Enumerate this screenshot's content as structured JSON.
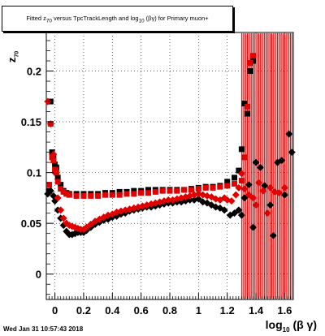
{
  "title_box": {
    "text_before": "Fitted  z",
    "text_sub": "70",
    "text_mid": " versus TpcTrackLength and log",
    "text_sub2": "10",
    "text_after": " (βγ) for Primary muon+"
  },
  "datestamp": "Wed Jan 31 10:57:43 2018",
  "chart_data": {
    "type": "scatter",
    "title": "Fitted z70 versus TpcTrackLength and log10(βγ) for Primary muon+",
    "xlabel": "log10(β γ)",
    "ylabel": "z70",
    "xlim": [
      -0.06,
      1.66
    ],
    "ylim": [
      -0.025,
      0.238
    ],
    "xticks": [
      0,
      0.2,
      0.4,
      0.6,
      0.8,
      1,
      1.2,
      1.4,
      1.6
    ],
    "xtick_labels": [
      "0",
      "0.2",
      "0.4",
      "0.6",
      "0.8",
      "1",
      "1.2",
      "1.4",
      "1.6"
    ],
    "yticks": [
      0,
      0.05,
      0.1,
      0.15,
      0.2
    ],
    "ytick_labels": [
      "0",
      "0.05",
      "0.1",
      "0.15",
      "0.2"
    ],
    "grid": true,
    "series": [
      {
        "marker": "square",
        "color": "#000000",
        "points": [
          [
            -0.04,
            0.082
          ],
          [
            -0.03,
            0.17
          ],
          [
            -0.02,
            0.12
          ],
          [
            -0.01,
            0.115
          ],
          [
            0.0,
            0.108
          ],
          [
            0.01,
            0.105
          ],
          [
            0.02,
            0.095
          ],
          [
            0.04,
            0.088
          ],
          [
            0.06,
            0.082
          ],
          [
            0.08,
            0.08
          ],
          [
            0.1,
            0.079
          ],
          [
            0.15,
            0.079
          ],
          [
            0.2,
            0.079
          ],
          [
            0.25,
            0.079
          ],
          [
            0.3,
            0.079
          ],
          [
            0.35,
            0.08
          ],
          [
            0.4,
            0.08
          ],
          [
            0.45,
            0.081
          ],
          [
            0.5,
            0.081
          ],
          [
            0.55,
            0.082
          ],
          [
            0.6,
            0.082
          ],
          [
            0.65,
            0.083
          ],
          [
            0.7,
            0.083
          ],
          [
            0.75,
            0.083
          ],
          [
            0.8,
            0.083
          ],
          [
            0.85,
            0.083
          ],
          [
            0.9,
            0.083
          ],
          [
            0.95,
            0.084
          ],
          [
            1.0,
            0.085
          ],
          [
            1.05,
            0.086
          ],
          [
            1.1,
            0.086
          ],
          [
            1.15,
            0.087
          ],
          [
            1.2,
            0.091
          ],
          [
            1.25,
            0.095
          ],
          [
            1.28,
            0.102
          ],
          [
            1.3,
            0.123
          ],
          [
            1.32,
            0.168
          ],
          [
            1.34,
            0.158
          ],
          [
            1.36,
            0.2
          ],
          [
            1.38,
            0.21
          ]
        ]
      },
      {
        "marker": "square",
        "color": "#e00000",
        "points": [
          [
            -0.04,
            0.088
          ],
          [
            -0.03,
            0.148
          ],
          [
            -0.02,
            0.115
          ],
          [
            -0.01,
            0.112
          ],
          [
            0.0,
            0.103
          ],
          [
            0.01,
            0.1
          ],
          [
            0.02,
            0.091
          ],
          [
            0.04,
            0.084
          ],
          [
            0.06,
            0.081
          ],
          [
            0.08,
            0.079
          ],
          [
            0.1,
            0.078
          ],
          [
            0.15,
            0.077
          ],
          [
            0.2,
            0.077
          ],
          [
            0.25,
            0.077
          ],
          [
            0.3,
            0.077
          ],
          [
            0.35,
            0.078
          ],
          [
            0.4,
            0.078
          ],
          [
            0.45,
            0.078
          ],
          [
            0.5,
            0.079
          ],
          [
            0.55,
            0.079
          ],
          [
            0.6,
            0.08
          ],
          [
            0.65,
            0.08
          ],
          [
            0.7,
            0.081
          ],
          [
            0.75,
            0.082
          ],
          [
            0.8,
            0.082
          ],
          [
            0.85,
            0.082
          ],
          [
            0.9,
            0.083
          ],
          [
            0.95,
            0.083
          ],
          [
            1.0,
            0.084
          ],
          [
            1.05,
            0.085
          ],
          [
            1.1,
            0.085
          ],
          [
            1.15,
            0.086
          ],
          [
            1.2,
            0.087
          ],
          [
            1.25,
            0.089
          ],
          [
            1.3,
            0.092
          ],
          [
            1.32,
            0.115
          ],
          [
            1.34,
            0.165
          ],
          [
            1.36,
            0.208
          ],
          [
            1.38,
            0.215
          ]
        ]
      },
      {
        "marker": "diamond",
        "color": "#000000",
        "points": [
          [
            -0.05,
            0.079
          ],
          [
            -0.03,
            0.082
          ],
          [
            -0.01,
            0.077
          ],
          [
            0.0,
            0.072
          ],
          [
            0.02,
            0.063
          ],
          [
            0.04,
            0.055
          ],
          [
            0.06,
            0.048
          ],
          [
            0.08,
            0.042
          ],
          [
            0.1,
            0.039
          ],
          [
            0.12,
            0.039
          ],
          [
            0.14,
            0.04
          ],
          [
            0.16,
            0.041
          ],
          [
            0.18,
            0.041
          ],
          [
            0.2,
            0.041
          ],
          [
            0.22,
            0.043
          ],
          [
            0.25,
            0.046
          ],
          [
            0.28,
            0.049
          ],
          [
            0.31,
            0.051
          ],
          [
            0.34,
            0.053
          ],
          [
            0.37,
            0.054
          ],
          [
            0.4,
            0.056
          ],
          [
            0.43,
            0.057
          ],
          [
            0.46,
            0.059
          ],
          [
            0.49,
            0.06
          ],
          [
            0.52,
            0.062
          ],
          [
            0.55,
            0.063
          ],
          [
            0.58,
            0.064
          ],
          [
            0.61,
            0.065
          ],
          [
            0.64,
            0.066
          ],
          [
            0.67,
            0.066
          ],
          [
            0.7,
            0.067
          ],
          [
            0.73,
            0.068
          ],
          [
            0.76,
            0.069
          ],
          [
            0.79,
            0.07
          ],
          [
            0.82,
            0.07
          ],
          [
            0.85,
            0.071
          ],
          [
            0.88,
            0.071
          ],
          [
            0.91,
            0.072
          ],
          [
            0.94,
            0.073
          ],
          [
            0.97,
            0.073
          ],
          [
            1.0,
            0.074
          ],
          [
            1.03,
            0.071
          ],
          [
            1.06,
            0.07
          ],
          [
            1.09,
            0.068
          ],
          [
            1.12,
            0.066
          ],
          [
            1.15,
            0.065
          ],
          [
            1.18,
            0.063
          ],
          [
            1.22,
            0.058
          ],
          [
            1.25,
            0.06
          ],
          [
            1.28,
            0.063
          ],
          [
            1.3,
            0.058
          ],
          [
            1.32,
            0.075
          ],
          [
            1.35,
            0.088
          ],
          [
            1.38,
            0.046
          ],
          [
            1.4,
            0.11
          ],
          [
            1.43,
            0.105
          ],
          [
            1.46,
            0.087
          ],
          [
            1.5,
            0.068
          ],
          [
            1.52,
            0.038
          ],
          [
            1.55,
            0.11
          ],
          [
            1.58,
            0.112
          ],
          [
            1.6,
            0.078
          ],
          [
            1.63,
            0.138
          ],
          [
            1.65,
            0.12
          ]
        ]
      },
      {
        "marker": "diamond",
        "color": "#e00000",
        "points": [
          [
            -0.05,
            0.17
          ],
          [
            -0.03,
            0.148
          ],
          [
            -0.01,
            0.118
          ],
          [
            0.0,
            0.1
          ],
          [
            0.02,
            0.075
          ],
          [
            0.04,
            0.063
          ],
          [
            0.06,
            0.055
          ],
          [
            0.08,
            0.05
          ],
          [
            0.1,
            0.048
          ],
          [
            0.12,
            0.047
          ],
          [
            0.14,
            0.046
          ],
          [
            0.16,
            0.045
          ],
          [
            0.18,
            0.044
          ],
          [
            0.2,
            0.044
          ],
          [
            0.22,
            0.046
          ],
          [
            0.25,
            0.049
          ],
          [
            0.28,
            0.052
          ],
          [
            0.31,
            0.054
          ],
          [
            0.34,
            0.056
          ],
          [
            0.37,
            0.058
          ],
          [
            0.4,
            0.059
          ],
          [
            0.43,
            0.061
          ],
          [
            0.46,
            0.062
          ],
          [
            0.49,
            0.063
          ],
          [
            0.52,
            0.064
          ],
          [
            0.55,
            0.065
          ],
          [
            0.58,
            0.066
          ],
          [
            0.61,
            0.067
          ],
          [
            0.64,
            0.068
          ],
          [
            0.67,
            0.069
          ],
          [
            0.7,
            0.07
          ],
          [
            0.73,
            0.071
          ],
          [
            0.76,
            0.072
          ],
          [
            0.79,
            0.073
          ],
          [
            0.82,
            0.073
          ],
          [
            0.85,
            0.074
          ],
          [
            0.88,
            0.075
          ],
          [
            0.91,
            0.076
          ],
          [
            0.94,
            0.077
          ],
          [
            0.97,
            0.078
          ],
          [
            1.0,
            0.079
          ],
          [
            1.03,
            0.078
          ],
          [
            1.06,
            0.077
          ],
          [
            1.09,
            0.076
          ],
          [
            1.12,
            0.074
          ],
          [
            1.15,
            0.073
          ],
          [
            1.18,
            0.075
          ],
          [
            1.2,
            0.073
          ],
          [
            1.23,
            0.072
          ],
          [
            1.26,
            0.078
          ],
          [
            1.28,
            0.085
          ],
          [
            1.3,
            0.099
          ],
          [
            1.32,
            0.084
          ],
          [
            1.35,
            0.078
          ],
          [
            1.38,
            0.075
          ],
          [
            1.4,
            0.068
          ],
          [
            1.42,
            0.09
          ],
          [
            1.45,
            0.082
          ],
          [
            1.48,
            0.06
          ],
          [
            1.5,
            0.085
          ],
          [
            1.53,
            0.081
          ],
          [
            1.56,
            0.08
          ],
          [
            1.6,
            0.085
          ]
        ]
      }
    ],
    "errorbar_x": [
      1.3,
      1.31,
      1.32,
      1.33,
      1.34,
      1.35,
      1.36,
      1.37,
      1.38,
      1.39,
      1.4,
      1.41,
      1.42,
      1.43,
      1.44,
      1.45,
      1.46,
      1.47,
      1.48,
      1.49,
      1.5,
      1.51,
      1.52,
      1.53,
      1.54,
      1.55,
      1.56,
      1.57,
      1.58,
      1.59,
      1.6,
      1.61,
      1.62,
      1.63,
      1.64,
      1.65
    ],
    "errorbar_color": "#e00000"
  }
}
